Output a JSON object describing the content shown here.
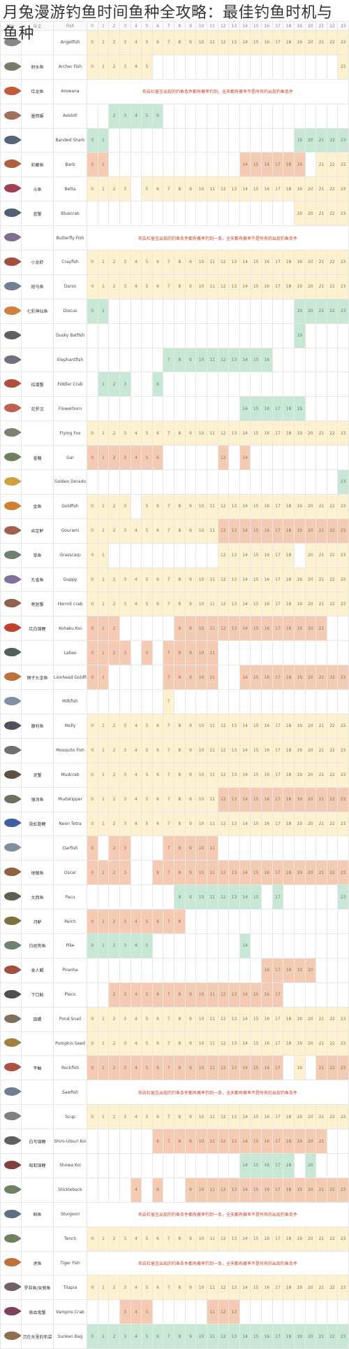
{
  "title": "月兔漫游钓鱼时间鱼种全攻略：最佳钓鱼时机与鱼种",
  "header": {
    "icon": "图片",
    "cn": "中文",
    "en": "Fish",
    "hours": [
      "0",
      "1",
      "2",
      "3",
      "4",
      "5",
      "6",
      "7",
      "8",
      "9",
      "10",
      "11",
      "12",
      "13",
      "14",
      "15",
      "16",
      "17",
      "18",
      "19",
      "20",
      "21",
      "22",
      "23"
    ]
  },
  "colors": {
    "all": "#fdf1cf",
    "day": "#f5cbb3",
    "night": "#c7e8d5",
    "empty": "#ffffff"
  },
  "fish": [
    {
      "cn": "",
      "en": "Angelfish",
      "icon_color": "#888888",
      "hours": "aaaaaaaaaaaaaaaaaaaaaaaa"
    },
    {
      "cn": "射水鱼",
      "en": "Archer Fish",
      "icon_color": "#7a7a6a",
      "hours": "aaaaaa.................a"
    },
    {
      "cn": "红龙鱼",
      "en": "Arowana",
      "icon_color": "#c45a3c",
      "red": true,
      "note": "布告栏留言出现的钓鱼条件都有概率钓到，全天都有概率不是所有的出现钓鱼条件"
    },
    {
      "cn": "墨西螈",
      "en": "Axolotl",
      "icon_color": "#a07060",
      "hours": "..nnnnn................."
    },
    {
      "cn": "",
      "en": "Banded Shark",
      "icon_color": "#556677",
      "hours": "nn.................nnnnn"
    },
    {
      "cn": "彩鲫鱼",
      "en": "Barb",
      "icon_color": "#b06040",
      "hours": "dd............dddddd.aaa"
    },
    {
      "cn": "斗鱼",
      "en": "Betta",
      "icon_color": "#a04050",
      "hours": "aaaa.aaaaaaaaaaaaaaaaaaa"
    },
    {
      "cn": "蓝蟹",
      "en": "Bluecrab",
      "icon_color": "#506070",
      "hours": "...................aaaaa"
    },
    {
      "cn": "",
      "en": "Butterfly Fish",
      "icon_color": "#807090",
      "red": true,
      "note": "布告栏留言出现的钓鱼条件都有概率钓到一条，全天都有概率不是所有的出现钓鱼条件"
    },
    {
      "cn": "小龙虾",
      "en": "Crayfish",
      "icon_color": "#a05040",
      "hours": "aaaaaaaaaaaaaaaaaaaaaaaa"
    },
    {
      "cn": "斑马鱼",
      "en": "Danio",
      "icon_color": "#708090",
      "hours": "aaaaaaaaaaaaaaaaaaaaaaaa"
    },
    {
      "cn": "七彩神仙鱼",
      "en": "Discus",
      "icon_color": "#d08040",
      "hours": "nn.................nnnnn"
    },
    {
      "cn": "",
      "en": "Dusky Batfish",
      "icon_color": "#606060",
      "hours": "...................n...."
    },
    {
      "cn": "",
      "en": "Elephantfish",
      "icon_color": "#707080",
      "hours": ".......nnnnnnnnnn......."
    },
    {
      "cn": "招潮蟹",
      "en": "Fiddler Crab",
      "icon_color": "#b05040",
      "hours": ".nnn..n................."
    },
    {
      "cn": "花罗汉",
      "en": "Flowerhorn",
      "icon_color": "#c06050",
      "hours": "..............nnnnnn...."
    },
    {
      "cn": "",
      "en": "Flying Fox",
      "icon_color": "#808070",
      "hours": "aaaaaaaaaaaaaaaaaaaaaaaa"
    },
    {
      "cn": "雀鳝",
      "en": "Gar",
      "icon_color": "#708060",
      "hours": "ddddddd.....d.d........."
    },
    {
      "cn": "",
      "en": "Golden Dorado",
      "icon_color": "#d0a040",
      "hours": ".......................n"
    },
    {
      "cn": "金鱼",
      "en": "Goldfish",
      "icon_color": "#d08030",
      "hours": "aaaa.aaaaaaaaaaaaaaaaaaa"
    },
    {
      "cn": "丝足鲈",
      "en": "Gourami",
      "icon_color": "#a06050",
      "hours": "aaaaaaaaaaaadddddddddddd"
    },
    {
      "cn": "草鱼",
      "en": "Grasscarp",
      "icon_color": "#708070",
      "hours": "aa..........aaaaaaa.aaaa"
    },
    {
      "cn": "孔雀鱼",
      "en": "Guppy",
      "icon_color": "#8070a0",
      "hours": "aaaaaaaaaaaaaaaaaaaaaaaa"
    },
    {
      "cn": "寄居蟹",
      "en": "Hermit crab",
      "icon_color": "#906050",
      "hours": "aaaaaaaaaaaaaaaaaaaaaaaa"
    },
    {
      "cn": "红白锦鲤",
      "en": "Kohaku Koi",
      "icon_color": "#c04030",
      "hours": "ddd.....dddddddddddddd.."
    },
    {
      "cn": "",
      "en": "Labeo",
      "icon_color": "#506060",
      "hours": "dddd.d.ddddd............"
    },
    {
      "cn": "狮子头金鱼",
      "en": "Lionhead Goldfish",
      "icon_color": "#c07040",
      "hours": "dd.....ddddd..dddddddddd"
    },
    {
      "cn": "",
      "en": "Milkfish",
      "icon_color": "#8090a0",
      "hours": ".......a................"
    },
    {
      "cn": "摩利鱼",
      "en": "Molly",
      "icon_color": "#505060",
      "hours": "aaaaaaaaaaaaaaaaaaaaaaaa"
    },
    {
      "cn": "",
      "en": "Mosquito Fish",
      "icon_color": "#707070",
      "hours": "aaaaaaaaaaaaaaaaaaaaaaaa"
    },
    {
      "cn": "泥蟹",
      "en": "Mudcrab",
      "icon_color": "#605040",
      "hours": "aaaaaaaaaaaaaaaaaaaaaaaa"
    },
    {
      "cn": "弹涂鱼",
      "en": "Mudskipper",
      "icon_color": "#707060",
      "hours": "aaaaaaaaaaaadddddddddddd"
    },
    {
      "cn": "霓虹脂鲤",
      "en": "Neon Tetra",
      "icon_color": "#4060a0",
      "hours": "aaaaaaaaaaaaaaaaaaaaaaaa"
    },
    {
      "cn": "",
      "en": "Oarfish",
      "icon_color": "#8090a0",
      "hours": "d.dd...ddddd............"
    },
    {
      "cn": "地图鱼",
      "en": "Oscar",
      "icon_color": "#906040",
      "hours": "dddd..dddddddddddddddddd"
    },
    {
      "cn": "大西鱼",
      "en": "Pacu",
      "icon_color": "#606050",
      "hours": "........nnnnnnnn.n.....n"
    },
    {
      "cn": "河鲈",
      "en": "Perch",
      "icon_color": "#807040",
      "hours": "ddddddddd..............."
    },
    {
      "cn": "白斑狗鱼",
      "en": "Pike",
      "icon_color": "#708070",
      "hours": "nnnnnn........n........."
    },
    {
      "cn": "食人鲳",
      "en": "Piranha",
      "icon_color": "#a05040",
      "hours": "................ddddd..."
    },
    {
      "cn": "下口鲶",
      "en": "Pleco",
      "icon_color": "#505050",
      "hours": "..dddddddddddddddd......"
    },
    {
      "cn": "田螺",
      "en": "Pond Snail",
      "icon_color": "#807060",
      "hours": "aaaaaaaaaaaaaaaaaaaaaaaa"
    },
    {
      "cn": "",
      "en": "Pumpkin Seed",
      "icon_color": "#a08040",
      "hours": "aaaaaaaaaaaaaaaaaaaaaaaa"
    },
    {
      "cn": "平鲉",
      "en": "Rockfish",
      "icon_color": "#b05040",
      "hours": "dddddddddddddddddd.a.ddd"
    },
    {
      "cn": "",
      "en": "Sawfish",
      "icon_color": "#708090",
      "red": true,
      "note": "布告栏留言出现的钓鱼条件都有概率钓到一条，全天都有概率不是所有的出现钓鱼条件"
    },
    {
      "cn": "",
      "en": "Scup",
      "icon_color": "#808080",
      "hours": "aaaaaaaaaaaaaaaaaaaaaaaa"
    },
    {
      "cn": "白写锦鲤",
      "en": "Shiro-Utsuri Koi",
      "icon_color": "#606060",
      "hours": "......dddddddddddddddd.."
    },
    {
      "cn": "昭和锦鲤",
      "en": "Showa Koi",
      "icon_color": "#804040",
      "hours": "..............nnnnn.n..."
    },
    {
      "cn": "",
      "en": "Stickleback",
      "icon_color": "#708060",
      "hours": "....d.d..ddddddddddddddd"
    },
    {
      "cn": "鲟鱼",
      "en": "Sturgeon",
      "icon_color": "#607080",
      "red": true,
      "note": "布告栏留言出现的钓鱼条件都有概率钓到一条，全天都有概率不是所有的出现钓鱼条件"
    },
    {
      "cn": "",
      "en": "Tench",
      "icon_color": "#708060",
      "hours": "aaaaaaaaaaaaaaaaaaaaaaaa"
    },
    {
      "cn": "虎鱼",
      "en": "Tiger Fish",
      "icon_color": "#c07040",
      "red": true,
      "note": "布告栏留言出现的钓鱼条件都有概率钓到一条，全天都有概率不是所有的出现钓鱼条件"
    },
    {
      "cn": "罗非鱼/吴郭鱼",
      "en": "Tilapia",
      "icon_color": "#706060",
      "hours": "aaaaaaaaaaaaaaaaaaaaaaaa"
    },
    {
      "cn": "吸血鬼蟹",
      "en": "Vampire Crab",
      "icon_color": "#804060",
      "hours": "...ddd.....ddd.........."
    },
    {
      "cn": "沉在水里的布袋",
      "en": "Sunken Bag",
      "icon_color": "#907050",
      "hours": "nnnnnnnnnnnnnnnnnnnnnnnn"
    }
  ]
}
